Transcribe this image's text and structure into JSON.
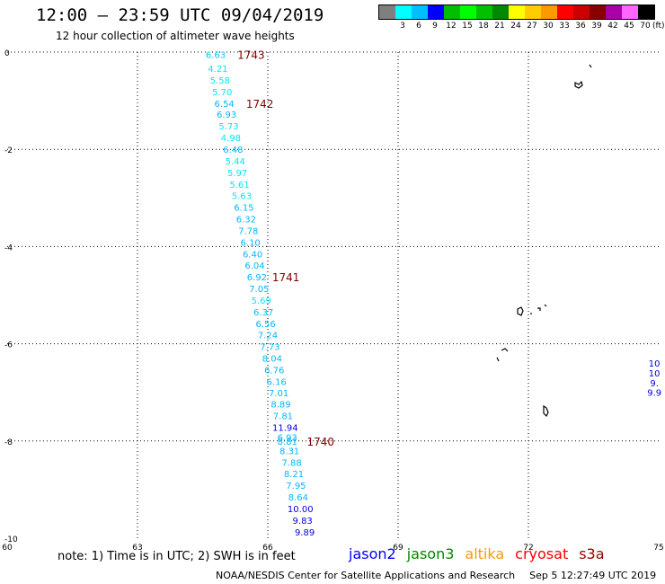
{
  "header": {
    "title": "12:00 – 23:59 UTC 09/04/2019",
    "subtitle": "12 hour collection of altimeter wave heights"
  },
  "legend": {
    "unit": "(ft)",
    "bins": [
      {
        "label": "",
        "color": "#7f7f7f"
      },
      {
        "label": "3",
        "color": "#00ffff"
      },
      {
        "label": "6",
        "color": "#00bfff"
      },
      {
        "label": "9",
        "color": "#0000ff"
      },
      {
        "label": "12",
        "color": "#00bf00"
      },
      {
        "label": "15",
        "color": "#00ff00"
      },
      {
        "label": "18",
        "color": "#00c000"
      },
      {
        "label": "21",
        "color": "#008800"
      },
      {
        "label": "24",
        "color": "#ffff00"
      },
      {
        "label": "27",
        "color": "#ffcc00"
      },
      {
        "label": "30",
        "color": "#ff9900"
      },
      {
        "label": "33",
        "color": "#ff0000"
      },
      {
        "label": "36",
        "color": "#cc0000"
      },
      {
        "label": "39",
        "color": "#880000"
      },
      {
        "label": "42",
        "color": "#aa00aa"
      },
      {
        "label": "45",
        "color": "#ff66ff"
      },
      {
        "label": "70",
        "color": "#000000"
      }
    ]
  },
  "map": {
    "lon_range": [
      60,
      75
    ],
    "lat_range": [
      -10,
      0
    ],
    "lon_ticks": [
      "60",
      "63",
      "66",
      "69",
      "72",
      "75"
    ],
    "lat_ticks": [
      "0",
      "-2",
      "-4",
      "-6",
      "-8",
      "-10"
    ],
    "grid": "dotted",
    "track_color": "#00c8ff",
    "time_label_color": "#800000",
    "readings": [
      {
        "lon": 64.8,
        "lat": -0.05,
        "value": "6.63",
        "color": "#00c8ff"
      },
      {
        "lon": 64.85,
        "lat": -0.33,
        "value": "4.21",
        "color": "#00e8ff"
      },
      {
        "lon": 64.9,
        "lat": -0.57,
        "value": "5.58",
        "color": "#00e8ff"
      },
      {
        "lon": 64.95,
        "lat": -0.81,
        "value": "5.70",
        "color": "#00e8ff"
      },
      {
        "lon": 65.0,
        "lat": -1.05,
        "value": "6.54",
        "color": "#00b8ff"
      },
      {
        "lon": 65.05,
        "lat": -1.28,
        "value": "6.93",
        "color": "#00b8ff"
      },
      {
        "lon": 65.1,
        "lat": -1.52,
        "value": "5.73",
        "color": "#00e8ff"
      },
      {
        "lon": 65.15,
        "lat": -1.76,
        "value": "4.98",
        "color": "#00e8ff"
      },
      {
        "lon": 65.2,
        "lat": -2.0,
        "value": "6.48",
        "color": "#00b8ff"
      },
      {
        "lon": 65.25,
        "lat": -2.24,
        "value": "5.44",
        "color": "#00e8ff"
      },
      {
        "lon": 65.3,
        "lat": -2.48,
        "value": "5.97",
        "color": "#00e8ff"
      },
      {
        "lon": 65.35,
        "lat": -2.72,
        "value": "5.61",
        "color": "#00e8ff"
      },
      {
        "lon": 65.4,
        "lat": -2.95,
        "value": "5.63",
        "color": "#00e8ff"
      },
      {
        "lon": 65.45,
        "lat": -3.19,
        "value": "6.15",
        "color": "#00b8ff"
      },
      {
        "lon": 65.5,
        "lat": -3.43,
        "value": "6.32",
        "color": "#00b8ff"
      },
      {
        "lon": 65.55,
        "lat": -3.67,
        "value": "7.78",
        "color": "#00b8ff"
      },
      {
        "lon": 65.6,
        "lat": -3.91,
        "value": "6.10",
        "color": "#00b8ff"
      },
      {
        "lon": 65.65,
        "lat": -4.15,
        "value": "6.40",
        "color": "#00b8ff"
      },
      {
        "lon": 65.7,
        "lat": -4.38,
        "value": "6.04",
        "color": "#00b8ff"
      },
      {
        "lon": 65.75,
        "lat": -4.62,
        "value": "6.92",
        "color": "#00b8ff"
      },
      {
        "lon": 65.8,
        "lat": -4.86,
        "value": "7.05",
        "color": "#00b8ff"
      },
      {
        "lon": 65.85,
        "lat": -5.1,
        "value": "5.69",
        "color": "#00e8ff"
      },
      {
        "lon": 65.9,
        "lat": -5.34,
        "value": "6.37",
        "color": "#00b8ff"
      },
      {
        "lon": 65.95,
        "lat": -5.58,
        "value": "6.56",
        "color": "#00b8ff"
      },
      {
        "lon": 66.0,
        "lat": -5.81,
        "value": "7.24",
        "color": "#00b8ff"
      },
      {
        "lon": 66.05,
        "lat": -6.05,
        "value": "7.73",
        "color": "#00b8ff"
      },
      {
        "lon": 66.1,
        "lat": -6.29,
        "value": "8.04",
        "color": "#00b8ff"
      },
      {
        "lon": 66.15,
        "lat": -6.53,
        "value": "6.76",
        "color": "#00b8ff"
      },
      {
        "lon": 66.2,
        "lat": -6.77,
        "value": "6.16",
        "color": "#00b8ff"
      },
      {
        "lon": 66.25,
        "lat": -7.01,
        "value": "7.01",
        "color": "#00b8ff"
      },
      {
        "lon": 66.3,
        "lat": -7.24,
        "value": "8.89",
        "color": "#00b8ff"
      },
      {
        "lon": 66.35,
        "lat": -7.48,
        "value": "7.81",
        "color": "#00b8ff"
      },
      {
        "lon": 66.4,
        "lat": -7.72,
        "value": "11.94",
        "color": "#0000e0"
      },
      {
        "lon": 66.45,
        "lat": -7.92,
        "value": "6.93",
        "color": "#00b8ff"
      },
      {
        "lon": 66.45,
        "lat": -8.0,
        "value": "8.81",
        "color": "#00b8ff"
      },
      {
        "lon": 66.5,
        "lat": -8.2,
        "value": "8.31",
        "color": "#00b8ff"
      },
      {
        "lon": 66.55,
        "lat": -8.44,
        "value": "7.88",
        "color": "#00b8ff"
      },
      {
        "lon": 66.6,
        "lat": -8.67,
        "value": "8.21",
        "color": "#00b8ff"
      },
      {
        "lon": 66.65,
        "lat": -8.91,
        "value": "7.95",
        "color": "#00b8ff"
      },
      {
        "lon": 66.7,
        "lat": -9.15,
        "value": "8.64",
        "color": "#00b8ff"
      },
      {
        "lon": 66.75,
        "lat": -9.39,
        "value": "10.00",
        "color": "#0000e0"
      },
      {
        "lon": 66.8,
        "lat": -9.63,
        "value": "9.83",
        "color": "#0000e0"
      },
      {
        "lon": 66.85,
        "lat": -9.87,
        "value": "9.89",
        "color": "#0000e0"
      },
      {
        "lon": 74.9,
        "lat": -6.4,
        "value": "10",
        "color": "#0000e0"
      },
      {
        "lon": 74.9,
        "lat": -6.6,
        "value": "10",
        "color": "#0000e0"
      },
      {
        "lon": 74.9,
        "lat": -6.8,
        "value": "9.",
        "color": "#0000e0"
      },
      {
        "lon": 74.9,
        "lat": -7.0,
        "value": "9.9",
        "color": "#0000e0"
      }
    ],
    "time_labels": [
      {
        "lon": 65.3,
        "lat": -0.05,
        "text": "1743"
      },
      {
        "lon": 65.5,
        "lat": -1.05,
        "text": "1742"
      },
      {
        "lon": 66.1,
        "lat": -4.62,
        "text": "1741"
      },
      {
        "lon": 66.9,
        "lat": -8.0,
        "text": "1740"
      }
    ]
  },
  "footer": {
    "note": "note:  1) Time is in UTC;  2) SWH is in feet",
    "satellites": [
      {
        "name": "jason2",
        "color": "#0000ff"
      },
      {
        "name": "jason3",
        "color": "#008800"
      },
      {
        "name": "altika",
        "color": "#ff9900"
      },
      {
        "name": "cryosat",
        "color": "#ff0000"
      },
      {
        "name": "s3a",
        "color": "#990000"
      }
    ],
    "credit": "NOAA/NESDIS Center for Satellite Applications and Research",
    "timestamp": "Sep  5 12:27:49 UTC 2019"
  }
}
